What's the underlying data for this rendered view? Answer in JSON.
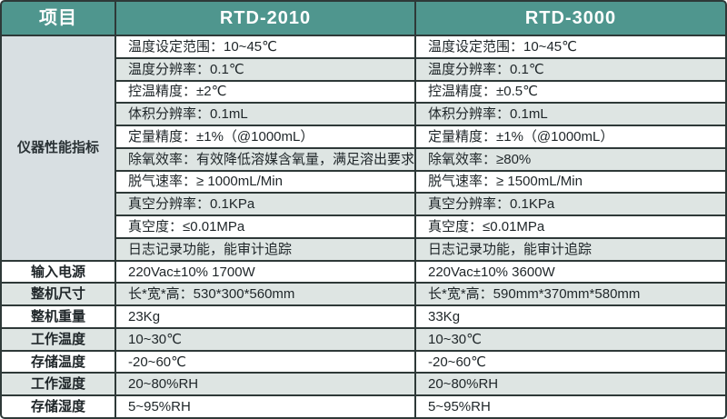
{
  "colors": {
    "header_teal": "#4f968e",
    "stripe_gray": "#dee5e3",
    "merged_cell_gray": "#d8dfe2",
    "grid_line": "#2e3938",
    "header_text": "#ffffff",
    "body_text": "#1e2528"
  },
  "header": {
    "col_item": "项目",
    "col_a": "RTD-2010",
    "col_b": "RTD-3000"
  },
  "performance": {
    "label": "仪器性能指标",
    "rows": [
      {
        "a": "温度设定范围：10~45℃",
        "b": "温度设定范围：10~45℃"
      },
      {
        "a": "温度分辨率：0.1℃",
        "b": "温度分辨率：0.1℃"
      },
      {
        "a": "控温精度：±2℃",
        "b": "控温精度：±0.5℃"
      },
      {
        "a": "体积分辨率：0.1mL",
        "b": "体积分辨率：0.1mL"
      },
      {
        "a": "定量精度：±1%（@1000mL）",
        "b": "定量精度：±1%（@1000mL）"
      },
      {
        "a": "除氧效率：有效降低溶媒含氧量，满足溶出要求",
        "b": "除氧效率：≥80%"
      },
      {
        "a": "脱气速率：≥ 1000mL/Min",
        "b": "脱气速率：≥ 1500mL/Min"
      },
      {
        "a": "真空分辨率：0.1KPa",
        "b": "真空分辨率：0.1KPa"
      },
      {
        "a": "真空度：≤0.01MPa",
        "b": "真空度：≤0.01MPa"
      },
      {
        "a": "日志记录功能，能审计追踪",
        "b": "日志记录功能，能审计追踪"
      }
    ]
  },
  "general_rows": [
    {
      "label": "输入电源",
      "a": "220Vac±10% 1700W",
      "b": "220Vac±10% 3600W"
    },
    {
      "label": "整机尺寸",
      "a": "长*宽*高：530*300*560mm",
      "b": "长*宽*高：590mm*370mm*580mm"
    },
    {
      "label": "整机重量",
      "a": "23Kg",
      "b": "33Kg"
    },
    {
      "label": "工作温度",
      "a": "10~30℃",
      "b": "10~30℃"
    },
    {
      "label": "存储温度",
      "a": "-20~60℃",
      "b": "-20~60℃"
    },
    {
      "label": "工作湿度",
      "a": "20~80%RH",
      "b": "20~80%RH"
    },
    {
      "label": "存储湿度",
      "a": "5~95%RH",
      "b": "5~95%RH"
    }
  ]
}
